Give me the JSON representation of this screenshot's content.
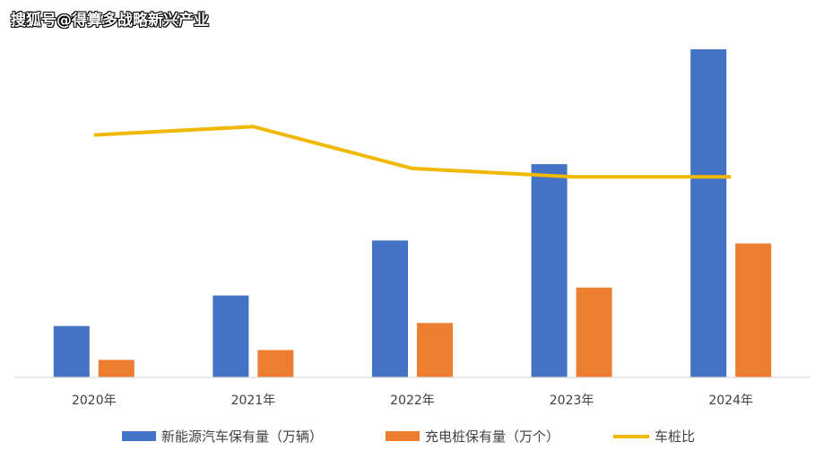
{
  "watermark": "搜狐号@得算多战略新兴产业",
  "chart_data": {
    "type": "bar",
    "categories": [
      "2020年",
      "2021年",
      "2022年",
      "2023年",
      "2024年"
    ],
    "series": [
      {
        "name": "新能源汽车保有量（万辆）",
        "type": "bar",
        "color": "#4472C4",
        "values": [
          492,
          784,
          1310,
          2041,
          3140
        ]
      },
      {
        "name": "充电桩保有量（万个）",
        "type": "bar",
        "color": "#ED7D31",
        "values": [
          168,
          262,
          521,
          860,
          1282
        ]
      },
      {
        "name": "车桩比",
        "type": "line",
        "color": "#F0B800",
        "values": [
          2.9,
          3.0,
          2.5,
          2.4,
          2.4
        ]
      }
    ],
    "bar_ylim": [
      0,
      3200
    ],
    "line_ylim": [
      0,
      4
    ],
    "legend_position": "bottom",
    "grid": false
  }
}
